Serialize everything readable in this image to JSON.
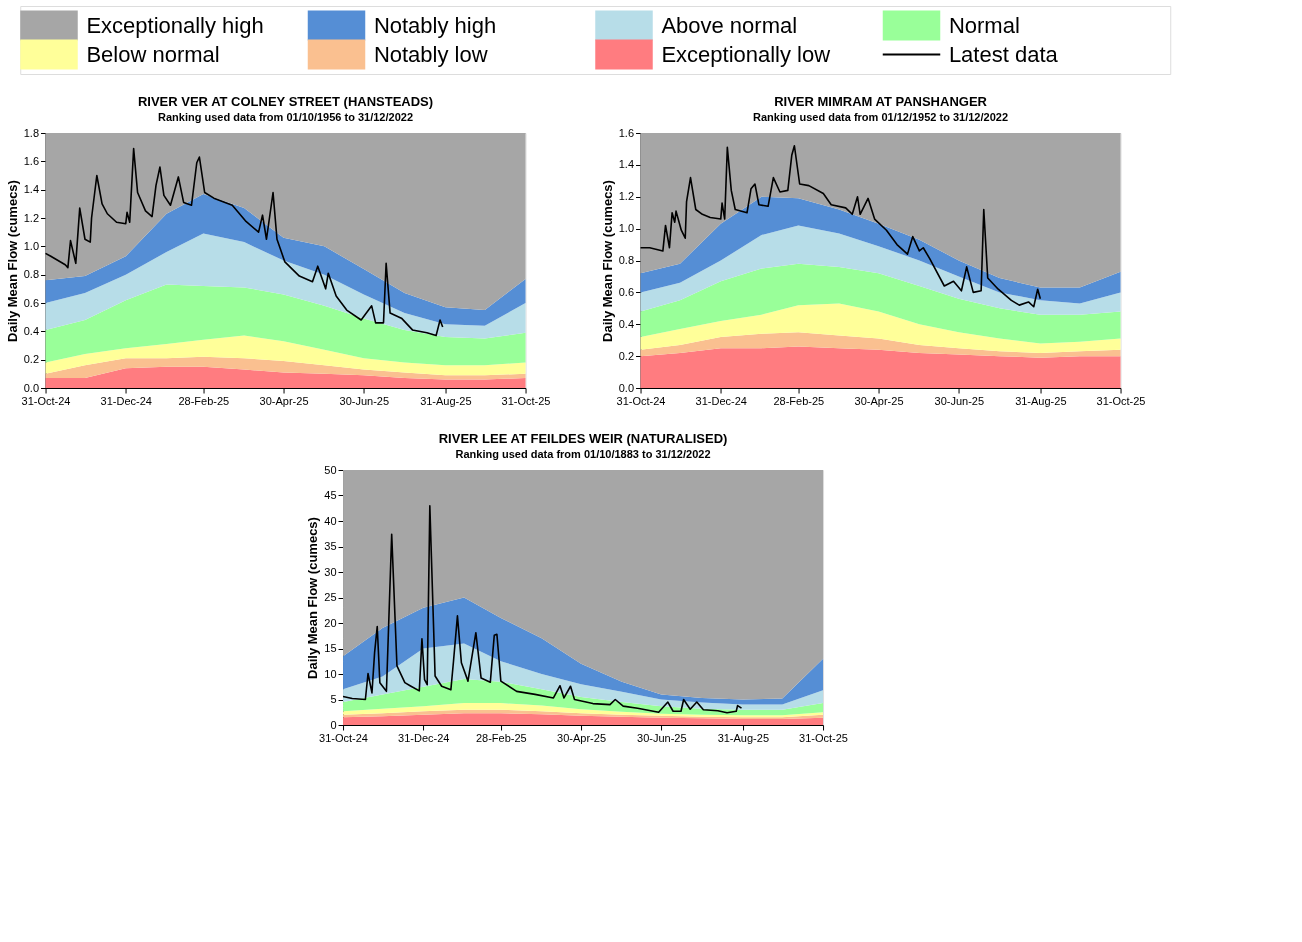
{
  "chart_data": [
    {
      "type": "area",
      "stacked": true,
      "legend": "top",
      "grid": false,
      "title": "RIVER VER AT COLNEY STREET (HANSTEADS)",
      "subtitle": "Ranking used data from 01/10/1956 to 31/12/2022",
      "ylabel": "Daily Mean Flow (cumecs)",
      "xlim": [
        "2024-10-31",
        "2025-10-31"
      ],
      "xticks": [
        {
          "value": "2024-10-31",
          "label": "31-Oct-24"
        },
        {
          "value": "2024-12-31",
          "label": "31-Dec-24"
        },
        {
          "value": "2025-02-28",
          "label": "28-Feb-25"
        },
        {
          "value": "2025-04-30",
          "label": "30-Apr-25"
        },
        {
          "value": "2025-06-30",
          "label": "30-Jun-25"
        },
        {
          "value": "2025-08-31",
          "label": "31-Aug-25"
        },
        {
          "value": "2025-10-31",
          "label": "31-Oct-25"
        }
      ],
      "ylim": [
        0,
        1.8
      ],
      "yticks": [
        {
          "value": 0,
          "label": "0.0"
        },
        {
          "value": 0.2,
          "label": "0.2"
        },
        {
          "value": 0.4,
          "label": "0.4"
        },
        {
          "value": 0.6,
          "label": "0.6"
        },
        {
          "value": 0.8,
          "label": "0.8"
        },
        {
          "value": 1.0,
          "label": "1.0"
        },
        {
          "value": 1.2,
          "label": "1.2"
        },
        {
          "value": 1.4,
          "label": "1.4"
        },
        {
          "value": 1.6,
          "label": "1.6"
        },
        {
          "value": 1.8,
          "label": "1.8"
        }
      ],
      "x": [
        "2024-10-31",
        "2024-11-30",
        "2024-12-31",
        "2025-01-31",
        "2025-02-28",
        "2025-03-31",
        "2025-04-30",
        "2025-05-31",
        "2025-06-30",
        "2025-07-31",
        "2025-08-31",
        "2025-09-30",
        "2025-10-31"
      ],
      "series": [
        {
          "name": "Exceptionally low",
          "color": "#ff7c80",
          "values": [
            0.07,
            0.07,
            0.14,
            0.15,
            0.15,
            0.13,
            0.11,
            0.1,
            0.09,
            0.07,
            0.06,
            0.06,
            0.07
          ]
        },
        {
          "name": "Notably low",
          "color": "#fac090",
          "values": [
            0.03,
            0.09,
            0.07,
            0.06,
            0.07,
            0.08,
            0.08,
            0.06,
            0.04,
            0.04,
            0.03,
            0.03,
            0.03
          ]
        },
        {
          "name": "Below normal",
          "color": "#ffff99",
          "values": [
            0.08,
            0.08,
            0.07,
            0.1,
            0.12,
            0.16,
            0.14,
            0.11,
            0.08,
            0.07,
            0.07,
            0.07,
            0.08
          ]
        },
        {
          "name": "Normal",
          "color": "#99ff99",
          "values": [
            0.23,
            0.24,
            0.34,
            0.42,
            0.38,
            0.34,
            0.33,
            0.31,
            0.28,
            0.23,
            0.2,
            0.19,
            0.21
          ]
        },
        {
          "name": "Above normal",
          "color": "#b7dde8",
          "values": [
            0.19,
            0.19,
            0.18,
            0.23,
            0.37,
            0.32,
            0.24,
            0.22,
            0.17,
            0.12,
            0.09,
            0.09,
            0.21
          ]
        },
        {
          "name": "Notably high",
          "color": "#558ed5",
          "values": [
            0.16,
            0.12,
            0.13,
            0.27,
            0.28,
            0.24,
            0.16,
            0.2,
            0.18,
            0.14,
            0.12,
            0.11,
            0.17
          ]
        },
        {
          "name": "Exceptionally high",
          "color": "#a6a6a6",
          "values": [
            1.04,
            1.01,
            0.87,
            0.57,
            0.43,
            0.53,
            0.74,
            0.8,
            0.96,
            1.13,
            1.23,
            1.25,
            1.03
          ]
        },
        {
          "name": "Latest data",
          "type": "line",
          "color": "#000000",
          "x": [
            "2024-10-31",
            "2024-11-04",
            "2024-11-15",
            "2024-11-17",
            "2024-11-19",
            "2024-11-23",
            "2024-11-26",
            "2024-11-30",
            "2024-12-04",
            "2024-12-05",
            "2024-12-09",
            "2024-12-13",
            "2024-12-17",
            "2024-12-24",
            "2024-12-31",
            "2025-01-01",
            "2025-01-03",
            "2025-01-06",
            "2025-01-09",
            "2025-01-15",
            "2025-01-20",
            "2025-01-23",
            "2025-01-26",
            "2025-01-29",
            "2025-02-03",
            "2025-02-09",
            "2025-02-13",
            "2025-02-19",
            "2025-02-23",
            "2025-02-25",
            "2025-03-01",
            "2025-03-08",
            "2025-03-22",
            "2025-04-01",
            "2025-04-11",
            "2025-04-14",
            "2025-04-17",
            "2025-04-22",
            "2025-04-25",
            "2025-05-01",
            "2025-05-12",
            "2025-05-22",
            "2025-05-26",
            "2025-06-01",
            "2025-06-03",
            "2025-06-09",
            "2025-06-17",
            "2025-06-28",
            "2025-07-06",
            "2025-07-09",
            "2025-07-15",
            "2025-07-17",
            "2025-07-20",
            "2025-07-29",
            "2025-08-06",
            "2025-08-17",
            "2025-08-24",
            "2025-08-27",
            "2025-08-29"
          ],
          "values": [
            0.95,
            0.93,
            0.87,
            0.85,
            1.04,
            0.88,
            1.27,
            1.05,
            1.03,
            1.2,
            1.5,
            1.3,
            1.23,
            1.17,
            1.16,
            1.24,
            1.17,
            1.69,
            1.38,
            1.25,
            1.21,
            1.43,
            1.56,
            1.36,
            1.29,
            1.49,
            1.31,
            1.29,
            1.59,
            1.63,
            1.38,
            1.34,
            1.29,
            1.18,
            1.1,
            1.22,
            1.05,
            1.38,
            1.05,
            0.89,
            0.79,
            0.75,
            0.86,
            0.7,
            0.81,
            0.65,
            0.55,
            0.48,
            0.58,
            0.46,
            0.46,
            0.88,
            0.53,
            0.49,
            0.41,
            0.39,
            0.37,
            0.48,
            0.43
          ]
        }
      ]
    },
    {
      "type": "area",
      "stacked": true,
      "legend": "top",
      "grid": false,
      "title": "RIVER MIMRAM AT PANSHANGER",
      "subtitle": "Ranking used data from 01/12/1952 to 31/12/2022",
      "ylabel": "Daily Mean Flow (cumecs)",
      "xlim": [
        "2024-10-31",
        "2025-10-31"
      ],
      "xticks": [
        {
          "value": "2024-10-31",
          "label": "31-Oct-24"
        },
        {
          "value": "2024-12-31",
          "label": "31-Dec-24"
        },
        {
          "value": "2025-02-28",
          "label": "28-Feb-25"
        },
        {
          "value": "2025-04-30",
          "label": "30-Apr-25"
        },
        {
          "value": "2025-06-30",
          "label": "30-Jun-25"
        },
        {
          "value": "2025-08-31",
          "label": "31-Aug-25"
        },
        {
          "value": "2025-10-31",
          "label": "31-Oct-25"
        }
      ],
      "ylim": [
        0,
        1.6
      ],
      "yticks": [
        {
          "value": 0,
          "label": "0.0"
        },
        {
          "value": 0.2,
          "label": "0.2"
        },
        {
          "value": 0.4,
          "label": "0.4"
        },
        {
          "value": 0.6,
          "label": "0.6"
        },
        {
          "value": 0.8,
          "label": "0.8"
        },
        {
          "value": 1.0,
          "label": "1.0"
        },
        {
          "value": 1.2,
          "label": "1.2"
        },
        {
          "value": 1.4,
          "label": "1.4"
        },
        {
          "value": 1.6,
          "label": "1.6"
        }
      ],
      "x": [
        "2024-10-31",
        "2024-11-30",
        "2024-12-31",
        "2025-01-31",
        "2025-02-28",
        "2025-03-31",
        "2025-04-30",
        "2025-05-31",
        "2025-06-30",
        "2025-07-31",
        "2025-08-31",
        "2025-09-30",
        "2025-10-31"
      ],
      "series": [
        {
          "name": "Exceptionally low",
          "color": "#ff7c80",
          "values": [
            0.2,
            0.22,
            0.25,
            0.25,
            0.26,
            0.25,
            0.24,
            0.22,
            0.21,
            0.2,
            0.19,
            0.2,
            0.2
          ]
        },
        {
          "name": "Notably low",
          "color": "#fac090",
          "values": [
            0.04,
            0.05,
            0.07,
            0.09,
            0.09,
            0.08,
            0.07,
            0.05,
            0.04,
            0.03,
            0.03,
            0.03,
            0.04
          ]
        },
        {
          "name": "Below normal",
          "color": "#ffff99",
          "values": [
            0.08,
            0.1,
            0.1,
            0.12,
            0.17,
            0.2,
            0.17,
            0.13,
            0.1,
            0.08,
            0.06,
            0.06,
            0.07
          ]
        },
        {
          "name": "Normal",
          "color": "#99ff99",
          "values": [
            0.16,
            0.18,
            0.25,
            0.29,
            0.26,
            0.23,
            0.24,
            0.24,
            0.21,
            0.19,
            0.18,
            0.17,
            0.17
          ]
        },
        {
          "name": "Above normal",
          "color": "#b7dde8",
          "values": [
            0.12,
            0.11,
            0.13,
            0.21,
            0.24,
            0.21,
            0.17,
            0.16,
            0.14,
            0.1,
            0.09,
            0.07,
            0.12
          ]
        },
        {
          "name": "Notably high",
          "color": "#558ed5",
          "values": [
            0.12,
            0.12,
            0.23,
            0.24,
            0.17,
            0.15,
            0.14,
            0.13,
            0.1,
            0.09,
            0.08,
            0.1,
            0.13
          ]
        },
        {
          "name": "Exceptionally high",
          "color": "#a6a6a6",
          "values": [
            0.88,
            0.82,
            0.57,
            0.4,
            0.41,
            0.48,
            0.57,
            0.67,
            0.8,
            0.91,
            0.97,
            0.97,
            0.87
          ]
        },
        {
          "name": "Latest data",
          "type": "line",
          "color": "#000000",
          "x": [
            "2024-10-31",
            "2024-11-07",
            "2024-11-17",
            "2024-11-19",
            "2024-11-22",
            "2024-11-24",
            "2024-11-26",
            "2024-11-27",
            "2024-12-01",
            "2024-12-04",
            "2024-12-05",
            "2024-12-08",
            "2024-12-12",
            "2024-12-17",
            "2024-12-23",
            "2024-12-31",
            "2025-01-01",
            "2025-01-03",
            "2025-01-05",
            "2025-01-08",
            "2025-01-11",
            "2025-01-20",
            "2025-01-23",
            "2025-01-26",
            "2025-01-29",
            "2025-02-05",
            "2025-02-09",
            "2025-02-14",
            "2025-02-20",
            "2025-02-23",
            "2025-02-25",
            "2025-03-01",
            "2025-03-08",
            "2025-03-19",
            "2025-03-25",
            "2025-04-05",
            "2025-04-10",
            "2025-04-14",
            "2025-04-16",
            "2025-04-22",
            "2025-04-27",
            "2025-05-06",
            "2025-05-14",
            "2025-05-22",
            "2025-05-26",
            "2025-05-31",
            "2025-06-03",
            "2025-06-08",
            "2025-06-19",
            "2025-06-26",
            "2025-07-02",
            "2025-07-06",
            "2025-07-11",
            "2025-07-17",
            "2025-07-19",
            "2025-07-22",
            "2025-07-30",
            "2025-08-09",
            "2025-08-15",
            "2025-08-22",
            "2025-08-26",
            "2025-08-29",
            "2025-08-31"
          ],
          "values": [
            0.88,
            0.88,
            0.86,
            1.02,
            0.88,
            1.1,
            1.04,
            1.11,
            0.99,
            0.94,
            1.17,
            1.32,
            1.12,
            1.09,
            1.07,
            1.06,
            1.16,
            1.06,
            1.51,
            1.24,
            1.12,
            1.1,
            1.25,
            1.28,
            1.15,
            1.14,
            1.32,
            1.23,
            1.24,
            1.46,
            1.52,
            1.28,
            1.27,
            1.22,
            1.15,
            1.13,
            1.09,
            1.2,
            1.09,
            1.19,
            1.06,
            0.99,
            0.9,
            0.84,
            0.95,
            0.86,
            0.88,
            0.81,
            0.64,
            0.67,
            0.61,
            0.76,
            0.6,
            0.61,
            1.12,
            0.69,
            0.62,
            0.55,
            0.52,
            0.54,
            0.51,
            0.62,
            0.56
          ]
        }
      ]
    },
    {
      "type": "area",
      "stacked": true,
      "legend": "top",
      "grid": false,
      "title": "RIVER LEE AT FEILDES WEIR (NATURALISED)",
      "subtitle": "Ranking used data from 01/10/1883 to 31/12/2022",
      "ylabel": "Daily Mean Flow (cumecs)",
      "xlim": [
        "2024-10-31",
        "2025-10-31"
      ],
      "xticks": [
        {
          "value": "2024-10-31",
          "label": "31-Oct-24"
        },
        {
          "value": "2024-12-31",
          "label": "31-Dec-24"
        },
        {
          "value": "2025-02-28",
          "label": "28-Feb-25"
        },
        {
          "value": "2025-04-30",
          "label": "30-Apr-25"
        },
        {
          "value": "2025-06-30",
          "label": "30-Jun-25"
        },
        {
          "value": "2025-08-31",
          "label": "31-Aug-25"
        },
        {
          "value": "2025-10-31",
          "label": "31-Oct-25"
        }
      ],
      "ylim": [
        0,
        50
      ],
      "yticks": [
        0,
        5,
        10,
        15,
        20,
        25,
        30,
        35,
        40,
        45,
        50
      ],
      "x": [
        "2024-10-31",
        "2024-11-30",
        "2024-12-31",
        "2025-01-31",
        "2025-02-28",
        "2025-03-31",
        "2025-04-30",
        "2025-05-31",
        "2025-06-30",
        "2025-07-31",
        "2025-08-31",
        "2025-09-30",
        "2025-10-31"
      ],
      "series": [
        {
          "name": "Exceptionally low",
          "color": "#ff7c80",
          "values": [
            1.5,
            1.7,
            2.0,
            2.3,
            2.3,
            2.1,
            1.8,
            1.6,
            1.4,
            1.3,
            1.2,
            1.2,
            1.4
          ]
        },
        {
          "name": "Notably low",
          "color": "#fac090",
          "values": [
            0.5,
            0.6,
            0.7,
            0.7,
            0.7,
            0.6,
            0.5,
            0.4,
            0.4,
            0.3,
            0.3,
            0.3,
            0.6
          ]
        },
        {
          "name": "Below normal",
          "color": "#ffff99",
          "values": [
            0.7,
            0.9,
            1.0,
            1.3,
            1.3,
            1.1,
            0.8,
            0.6,
            0.4,
            0.4,
            0.4,
            0.4,
            0.5
          ]
        },
        {
          "name": "Normal",
          "color": "#99ff99",
          "values": [
            1.8,
            2.8,
            3.8,
            4.7,
            4.2,
            3.2,
            2.4,
            1.9,
            1.5,
            1.2,
            1.1,
            1.1,
            1.8
          ]
        },
        {
          "name": "Above normal",
          "color": "#b7dde8",
          "values": [
            2.5,
            3.5,
            7.5,
            7.0,
            4.0,
            3.0,
            2.5,
            2.0,
            1.3,
            1.2,
            1.0,
            1.0,
            2.5
          ]
        },
        {
          "name": "Notably high",
          "color": "#558ed5",
          "values": [
            6.5,
            9.5,
            8.0,
            9.0,
            8.5,
            7.0,
            4.0,
            2.0,
            1.0,
            0.9,
            1.0,
            1.2,
            6.2
          ]
        },
        {
          "name": "Exceptionally high",
          "color": "#a6a6a6",
          "values": [
            36.5,
            31,
            27,
            25,
            29,
            33,
            38,
            41.5,
            44,
            44.7,
            45,
            44.8,
            37
          ]
        },
        {
          "name": "Latest data",
          "type": "line",
          "color": "#000000",
          "x": [
            "2024-10-31",
            "2024-11-07",
            "2024-11-17",
            "2024-11-19",
            "2024-11-22",
            "2024-11-24",
            "2024-11-26",
            "2024-11-28",
            "2024-12-03",
            "2024-12-07",
            "2024-12-11",
            "2024-12-17",
            "2024-12-21",
            "2024-12-28",
            "2024-12-30",
            "2025-01-01",
            "2025-01-03",
            "2025-01-05",
            "2025-01-09",
            "2025-01-14",
            "2025-01-21",
            "2025-01-23",
            "2025-01-26",
            "2025-01-29",
            "2025-02-03",
            "2025-02-09",
            "2025-02-13",
            "2025-02-20",
            "2025-02-23",
            "2025-02-25",
            "2025-02-28",
            "2025-03-12",
            "2025-03-26",
            "2025-04-09",
            "2025-04-14",
            "2025-04-17",
            "2025-04-22",
            "2025-04-25",
            "2025-05-09",
            "2025-05-22",
            "2025-05-26",
            "2025-06-01",
            "2025-06-12",
            "2025-06-28",
            "2025-07-05",
            "2025-07-09",
            "2025-07-15",
            "2025-07-17",
            "2025-07-22",
            "2025-07-27",
            "2025-08-01",
            "2025-08-12",
            "2025-08-19",
            "2025-08-26",
            "2025-08-27",
            "2025-08-30"
          ],
          "values": [
            5.6,
            5.2,
            5.0,
            10.1,
            6.3,
            14.2,
            19.3,
            8.3,
            6.6,
            37.4,
            11.6,
            8.3,
            7.7,
            6.7,
            16.9,
            8.9,
            7.9,
            43.0,
            9.6,
            7.6,
            6.9,
            12.5,
            21.4,
            12.2,
            8.6,
            18.1,
            9.2,
            8.4,
            17.6,
            17.8,
            8.6,
            6.6,
            6.0,
            5.3,
            7.7,
            5.3,
            7.6,
            5.0,
            4.2,
            4.0,
            5.0,
            3.7,
            3.3,
            2.5,
            4.5,
            2.7,
            2.7,
            5.0,
            3.1,
            4.5,
            3.0,
            2.8,
            2.4,
            2.7,
            3.8,
            3.3
          ]
        }
      ]
    }
  ]
}
